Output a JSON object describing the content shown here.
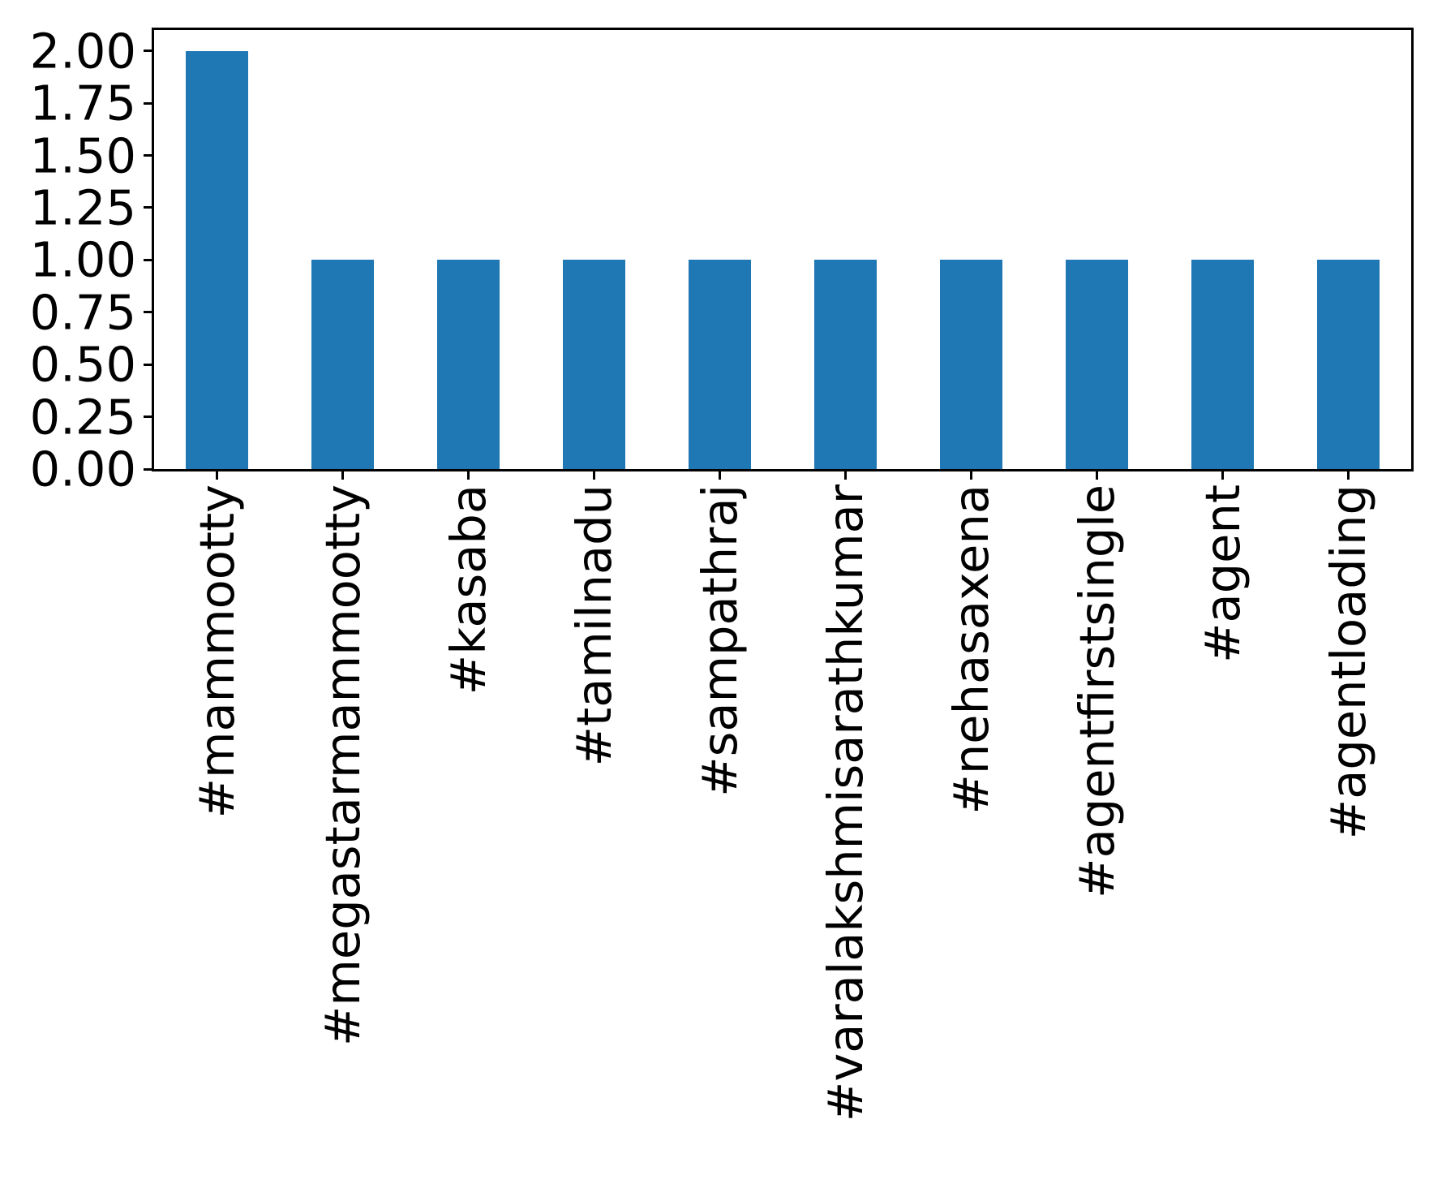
{
  "chart_data": {
    "type": "bar",
    "title": "",
    "xlabel": "",
    "ylabel": "",
    "categories": [
      "#mammootty",
      "#megastarmammootty",
      "#kasaba",
      "#tamilnadu",
      "#sampathraj",
      "#varalakshmisarathkumar",
      "#nehasaxena",
      "#agentfirstsingle",
      "#agent",
      "#agentloading"
    ],
    "values": [
      2,
      1,
      1,
      1,
      1,
      1,
      1,
      1,
      1,
      1
    ],
    "bar_color": "#1f77b4",
    "ylim": [
      0,
      2.1
    ],
    "ytick_values": [
      0,
      0.25,
      0.5,
      0.75,
      1.0,
      1.25,
      1.5,
      1.75,
      2.0
    ],
    "ytick_labels": [
      "0.00",
      "0.25",
      "0.50",
      "0.75",
      "1.00",
      "1.25",
      "1.50",
      "1.75",
      "2.00"
    ],
    "x_tick_rotation": 90,
    "grid": false,
    "legend": "none",
    "bar_rel_width": 0.5
  },
  "figure": {
    "background": "#ffffff",
    "axis_color": "#000000",
    "text_color": "#000000"
  }
}
